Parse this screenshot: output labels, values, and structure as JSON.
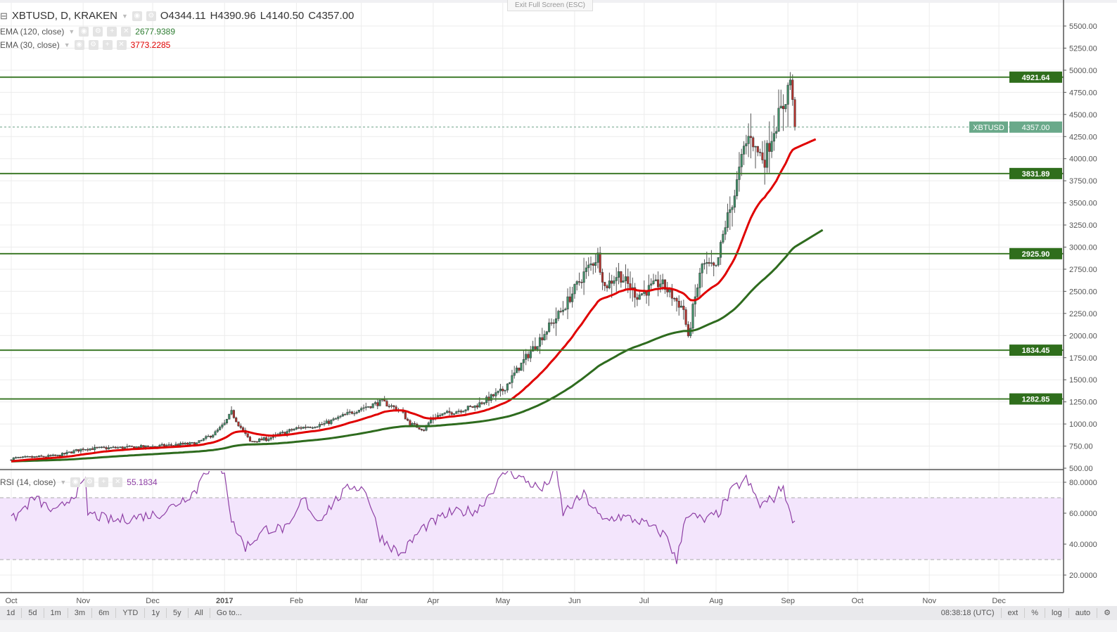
{
  "header": {
    "symbol": "XBTUSD, D, KRAKEN",
    "open": "O4344.11",
    "high": "H4390.96",
    "low": "L4140.50",
    "close": "C4357.00",
    "exit_fullscreen": "Exit Full Screen (ESC)"
  },
  "indicators": [
    {
      "label": "EMA (120, close)",
      "value": "2677.9389",
      "color": "#2e7d32"
    },
    {
      "label": "EMA (30, close)",
      "value": "3773.2285",
      "color": "#e00000"
    },
    {
      "label": "RSI (14, close)",
      "value": "55.1834",
      "color": "#8e3fa5"
    }
  ],
  "toolbar": {
    "ranges": [
      "1d",
      "5d",
      "1m",
      "3m",
      "6m",
      "YTD",
      "1y",
      "5y",
      "All",
      "Go to..."
    ],
    "time": "08:38:18 (UTC)",
    "options": [
      "ext",
      "%",
      "log",
      "auto"
    ]
  },
  "chart_data": {
    "type": "candlestick",
    "title": "XBTUSD, D, KRAKEN",
    "x_ticks": [
      {
        "day": 0,
        "label": "Oct"
      },
      {
        "day": 31,
        "label": "Nov"
      },
      {
        "day": 61,
        "label": "Dec"
      },
      {
        "day": 92,
        "label": "2017"
      },
      {
        "day": 123,
        "label": "Feb"
      },
      {
        "day": 151,
        "label": "Mar"
      },
      {
        "day": 182,
        "label": "Apr"
      },
      {
        "day": 212,
        "label": "May"
      },
      {
        "day": 243,
        "label": "Jun"
      },
      {
        "day": 273,
        "label": "Jul"
      },
      {
        "day": 304,
        "label": "Aug"
      },
      {
        "day": 335,
        "label": "Sep"
      },
      {
        "day": 365,
        "label": "Oct"
      },
      {
        "day": 396,
        "label": "Nov"
      },
      {
        "day": 426,
        "label": "Dec"
      }
    ],
    "ylim": [
      500,
      5500
    ],
    "y_ticks": [
      "5500.00",
      "5250.00",
      "5000.00",
      "4750.00",
      "4500.00",
      "4250.00",
      "4000.00",
      "3750.00",
      "3500.00",
      "3250.00",
      "3000.00",
      "2750.00",
      "2500.00",
      "2250.00",
      "2000.00",
      "1750.00",
      "1500.00",
      "1250.00",
      "1000.00",
      "750.00",
      "500.00"
    ],
    "close_keypoints": [
      [
        0,
        610
      ],
      [
        20,
        640
      ],
      [
        31,
        720
      ],
      [
        45,
        730
      ],
      [
        61,
        745
      ],
      [
        80,
        780
      ],
      [
        88,
        900
      ],
      [
        92,
        1000
      ],
      [
        95,
        1130
      ],
      [
        98,
        1000
      ],
      [
        103,
        800
      ],
      [
        110,
        830
      ],
      [
        123,
        950
      ],
      [
        135,
        1000
      ],
      [
        151,
        1180
      ],
      [
        160,
        1250
      ],
      [
        168,
        1150
      ],
      [
        172,
        1000
      ],
      [
        178,
        940
      ],
      [
        182,
        1080
      ],
      [
        200,
        1200
      ],
      [
        212,
        1380
      ],
      [
        222,
        1750
      ],
      [
        232,
        2100
      ],
      [
        238,
        2300
      ],
      [
        247,
        2700
      ],
      [
        253,
        2900
      ],
      [
        256,
        2550
      ],
      [
        262,
        2700
      ],
      [
        270,
        2450
      ],
      [
        280,
        2600
      ],
      [
        290,
        2300
      ],
      [
        292,
        1950
      ],
      [
        294,
        2300
      ],
      [
        298,
        2800
      ],
      [
        304,
        2750
      ],
      [
        308,
        3250
      ],
      [
        312,
        3600
      ],
      [
        316,
        4100
      ],
      [
        319,
        4300
      ],
      [
        321,
        4100
      ],
      [
        325,
        4000
      ],
      [
        329,
        4350
      ],
      [
        333,
        4600
      ],
      [
        336,
        4900
      ],
      [
        337,
        4600
      ],
      [
        338,
        4357
      ]
    ],
    "levels": [
      {
        "value": 4921.64,
        "label": "4921.64"
      },
      {
        "value": 3831.89,
        "label": "3831.89"
      },
      {
        "value": 2925.9,
        "label": "2925.90"
      },
      {
        "value": 1834.45,
        "label": "1834.45"
      },
      {
        "value": 1282.85,
        "label": "1282.85"
      }
    ],
    "last_price": {
      "value": 4357.0,
      "label": "4357.00",
      "symbol": "XBTUSD"
    },
    "rsi": {
      "ylim": [
        14,
        86
      ],
      "bands": [
        30,
        70
      ],
      "y_ticks": [
        "80.0000",
        "60.0000",
        "40.0000",
        "20.0000"
      ],
      "keypoints": [
        [
          0,
          55
        ],
        [
          10,
          70
        ],
        [
          19,
          60
        ],
        [
          32,
          80
        ],
        [
          33,
          60
        ],
        [
          44,
          55
        ],
        [
          56,
          58
        ],
        [
          65,
          60
        ],
        [
          80,
          75
        ],
        [
          83,
          88
        ],
        [
          92,
          88
        ],
        [
          95,
          55
        ],
        [
          101,
          38
        ],
        [
          110,
          50
        ],
        [
          120,
          50
        ],
        [
          126,
          70
        ],
        [
          132,
          55
        ],
        [
          141,
          70
        ],
        [
          147,
          78
        ],
        [
          153,
          75
        ],
        [
          159,
          45
        ],
        [
          168,
          33
        ],
        [
          177,
          50
        ],
        [
          189,
          60
        ],
        [
          201,
          62
        ],
        [
          214,
          88
        ],
        [
          223,
          80
        ],
        [
          229,
          75
        ],
        [
          235,
          88
        ],
        [
          238,
          60
        ],
        [
          247,
          72
        ],
        [
          255,
          55
        ],
        [
          262,
          58
        ],
        [
          271,
          55
        ],
        [
          277,
          50
        ],
        [
          283,
          45
        ],
        [
          287,
          28
        ],
        [
          291,
          60
        ],
        [
          299,
          55
        ],
        [
          305,
          60
        ],
        [
          311,
          75
        ],
        [
          317,
          82
        ],
        [
          323,
          65
        ],
        [
          329,
          70
        ],
        [
          333,
          78
        ],
        [
          336,
          58
        ],
        [
          338,
          55
        ]
      ]
    },
    "colors": {
      "up": "#3f8f68",
      "down": "#b5332e",
      "level": "#3e7a2a",
      "ema_fast": "#e00000",
      "ema_slow": "#2e6b1e",
      "rsi": "#8e3fa5"
    }
  }
}
